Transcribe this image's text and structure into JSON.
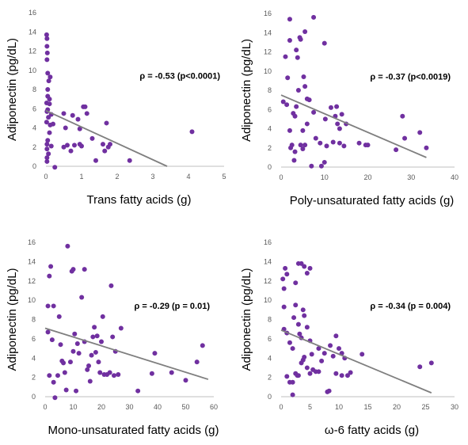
{
  "colors": {
    "point": "#7030a0",
    "trend": "#7f7f7f",
    "axis": "#bfbfbf"
  },
  "chart_data": [
    {
      "type": "scatter",
      "xlabel": "Trans fatty acids (g)",
      "ylabel": "Adiponectin (pg/dL)",
      "annotation": "ρ = -0.53 (p<0.0001)",
      "xlim": [
        0,
        5
      ],
      "ylim": [
        0,
        16
      ],
      "xticks": [
        "0",
        "1",
        "2",
        "3",
        "4",
        "5"
      ],
      "yticks": [
        "0",
        "2",
        "4",
        "6",
        "8",
        "10",
        "12",
        "14",
        "16"
      ],
      "trendline": [
        [
          0,
          5.8
        ],
        [
          3.4,
          0
        ]
      ],
      "grid": false,
      "points": [
        [
          0.02,
          13.7
        ],
        [
          0.03,
          13.3
        ],
        [
          0.03,
          12.5
        ],
        [
          0.04,
          11.8
        ],
        [
          0.03,
          11.1
        ],
        [
          0.05,
          9.7
        ],
        [
          0.12,
          9.3
        ],
        [
          0.08,
          8.9
        ],
        [
          0.05,
          8.0
        ],
        [
          0.05,
          7.3
        ],
        [
          0.1,
          7.0
        ],
        [
          0.02,
          6.6
        ],
        [
          0.05,
          5.9
        ],
        [
          0.03,
          5.7
        ],
        [
          0.1,
          6.5
        ],
        [
          0.15,
          5.4
        ],
        [
          0.07,
          5.1
        ],
        [
          0.02,
          4.6
        ],
        [
          0.2,
          4.4
        ],
        [
          0.12,
          4.3
        ],
        [
          0.1,
          3.5
        ],
        [
          0.05,
          2.7
        ],
        [
          0.03,
          2.3
        ],
        [
          0.15,
          2.1
        ],
        [
          0.03,
          1.8
        ],
        [
          0.07,
          1.3
        ],
        [
          0.03,
          0.9
        ],
        [
          0.03,
          0.5
        ],
        [
          0.25,
          -0.1
        ],
        [
          0.5,
          5.5
        ],
        [
          0.5,
          2.0
        ],
        [
          0.6,
          2.2
        ],
        [
          0.55,
          4.0
        ],
        [
          0.7,
          1.6
        ],
        [
          0.8,
          2.2
        ],
        [
          0.75,
          5.3
        ],
        [
          0.9,
          4.9
        ],
        [
          0.95,
          3.9
        ],
        [
          1.05,
          6.2
        ],
        [
          1.1,
          6.2
        ],
        [
          1.15,
          5.5
        ],
        [
          1.0,
          2.1
        ],
        [
          0.95,
          2.3
        ],
        [
          1.3,
          2.9
        ],
        [
          1.4,
          0.6
        ],
        [
          1.6,
          2.3
        ],
        [
          1.65,
          1.6
        ],
        [
          1.7,
          4.5
        ],
        [
          1.75,
          2.0
        ],
        [
          1.8,
          2.3
        ],
        [
          2.35,
          0.6
        ],
        [
          4.1,
          3.6
        ]
      ]
    },
    {
      "type": "scatter",
      "xlabel": "Poly-unsaturated fatty acids (g)",
      "ylabel": "Adiponectin (pg/dL)",
      "annotation": "ρ = -0.37 (p<0.0019)",
      "xlim": [
        0,
        40
      ],
      "ylim": [
        0,
        16
      ],
      "xticks": [
        "0",
        "10",
        "20",
        "30",
        "40"
      ],
      "yticks": [
        "0",
        "2",
        "4",
        "6",
        "8",
        "10",
        "12",
        "14",
        "16"
      ],
      "trendline": [
        [
          0,
          7.5
        ],
        [
          33.5,
          1.0
        ]
      ],
      "grid": false,
      "points": [
        [
          2,
          15.4
        ],
        [
          7.5,
          15.6
        ],
        [
          3.5,
          12.2
        ],
        [
          4.3,
          13.5
        ],
        [
          4.5,
          13.3
        ],
        [
          1,
          11.5
        ],
        [
          3.8,
          11.4
        ],
        [
          10,
          12.9
        ],
        [
          2,
          13.2
        ],
        [
          5.5,
          14.1
        ],
        [
          0.5,
          6.8
        ],
        [
          1.3,
          6.5
        ],
        [
          1.5,
          9.3
        ],
        [
          2.8,
          5.6
        ],
        [
          3.2,
          5.3
        ],
        [
          3.5,
          6.3
        ],
        [
          4,
          8.0
        ],
        [
          5.2,
          9.4
        ],
        [
          5.5,
          8.4
        ],
        [
          6,
          7.1
        ],
        [
          6.5,
          7.0
        ],
        [
          7.5,
          5.7
        ],
        [
          2,
          3.8
        ],
        [
          2.5,
          2.3
        ],
        [
          2.2,
          2.0
        ],
        [
          3.2,
          1.6
        ],
        [
          3,
          0.7
        ],
        [
          5,
          3.8
        ],
        [
          4.5,
          2.3
        ],
        [
          5,
          1.9
        ],
        [
          6,
          4.5
        ],
        [
          5.5,
          2.3
        ],
        [
          8,
          3.0
        ],
        [
          9,
          2.5
        ],
        [
          10,
          0.5
        ],
        [
          9.3,
          0.1
        ],
        [
          7,
          0.1
        ],
        [
          10.2,
          5.0
        ],
        [
          11.5,
          6.2
        ],
        [
          12.5,
          5.3
        ],
        [
          12.8,
          6.3
        ],
        [
          13,
          4.5
        ],
        [
          13.5,
          4.0
        ],
        [
          13.5,
          2.5
        ],
        [
          14,
          5.5
        ],
        [
          14.5,
          2.2
        ],
        [
          10.5,
          2.2
        ],
        [
          12,
          2.6
        ],
        [
          15,
          4.5
        ],
        [
          18,
          2.5
        ],
        [
          19.5,
          2.3
        ],
        [
          20,
          2.3
        ],
        [
          26.5,
          1.8
        ],
        [
          28,
          5.3
        ],
        [
          28.5,
          3.0
        ],
        [
          32,
          3.6
        ],
        [
          33.5,
          2.0
        ]
      ]
    },
    {
      "type": "scatter",
      "xlabel": "Mono-unsaturated fatty acids (g)",
      "ylabel": "Adiponectin (pg/dL)",
      "annotation": "ρ = -0.29 (p = 0.01)",
      "xlim": [
        0,
        60
      ],
      "ylim": [
        0,
        16
      ],
      "xticks": [
        "0",
        "10",
        "20",
        "30",
        "40",
        "50",
        "60"
      ],
      "yticks": [
        "0",
        "2",
        "4",
        "6",
        "8",
        "10",
        "12",
        "14",
        "16"
      ],
      "trendline": [
        [
          0,
          7.1
        ],
        [
          58,
          1.8
        ]
      ],
      "grid": false,
      "points": [
        [
          1,
          9.4
        ],
        [
          1.5,
          12.5
        ],
        [
          2,
          13.5
        ],
        [
          3,
          9.4
        ],
        [
          2.5,
          5.9
        ],
        [
          1,
          6.7
        ],
        [
          1.5,
          2.2
        ],
        [
          3,
          1.5
        ],
        [
          3.5,
          -0.1
        ],
        [
          4.5,
          2.2
        ],
        [
          5,
          8.3
        ],
        [
          5.5,
          5.4
        ],
        [
          6,
          3.7
        ],
        [
          6.5,
          3.5
        ],
        [
          7,
          2.5
        ],
        [
          8,
          15.6
        ],
        [
          7.5,
          0.7
        ],
        [
          9,
          3.6
        ],
        [
          9.5,
          13.0
        ],
        [
          10,
          13.2
        ],
        [
          10.5,
          6.5
        ],
        [
          10,
          4.7
        ],
        [
          11,
          0.6
        ],
        [
          11.5,
          5.5
        ],
        [
          12,
          4.5
        ],
        [
          13,
          10.3
        ],
        [
          14,
          13.2
        ],
        [
          14,
          5.7
        ],
        [
          15,
          2.8
        ],
        [
          15.5,
          3.2
        ],
        [
          16,
          1.6
        ],
        [
          16.5,
          4.3
        ],
        [
          17,
          6.2
        ],
        [
          17.5,
          7.2
        ],
        [
          18,
          4.6
        ],
        [
          18.5,
          6.3
        ],
        [
          19,
          3.6
        ],
        [
          19.5,
          2.5
        ],
        [
          20,
          5.7
        ],
        [
          20.5,
          8.3
        ],
        [
          21,
          2.3
        ],
        [
          22,
          2.3
        ],
        [
          23,
          2.5
        ],
        [
          23.5,
          11.5
        ],
        [
          24,
          6.2
        ],
        [
          24.5,
          2.2
        ],
        [
          25,
          4.7
        ],
        [
          26,
          2.3
        ],
        [
          27,
          7.1
        ],
        [
          33,
          0.6
        ],
        [
          38,
          2.4
        ],
        [
          39,
          4.5
        ],
        [
          45,
          2.5
        ],
        [
          50,
          1.7
        ],
        [
          54,
          3.6
        ],
        [
          56,
          5.3
        ]
      ]
    },
    {
      "type": "scatter",
      "xlabel": "ω-6 fatty acids (g)",
      "ylabel": "Adiponectin (pg/dL)",
      "annotation": "ρ = -0.34 (p = 0.004)",
      "xlim": [
        0,
        30
      ],
      "ylim": [
        0,
        16
      ],
      "xticks": [
        "0",
        "5",
        "10",
        "15",
        "20",
        "25",
        "30"
      ],
      "yticks": [
        "0",
        "2",
        "4",
        "6",
        "8",
        "10",
        "12",
        "14",
        "16"
      ],
      "trendline": [
        [
          0,
          6.9
        ],
        [
          26,
          0.4
        ]
      ],
      "grid": false,
      "points": [
        [
          0.3,
          12.2
        ],
        [
          0.7,
          13.3
        ],
        [
          1,
          12.7
        ],
        [
          2.5,
          11.8
        ],
        [
          3,
          13.8
        ],
        [
          3.5,
          13.8
        ],
        [
          4,
          13.5
        ],
        [
          4.5,
          12.8
        ],
        [
          5,
          13.3
        ],
        [
          0.5,
          11.2
        ],
        [
          0.5,
          9.3
        ],
        [
          2.5,
          9.5
        ],
        [
          3.8,
          9.0
        ],
        [
          0.5,
          7.0
        ],
        [
          1,
          6.6
        ],
        [
          1.5,
          5.6
        ],
        [
          2,
          5.0
        ],
        [
          2.2,
          8.2
        ],
        [
          3,
          7.5
        ],
        [
          3.2,
          6.5
        ],
        [
          3.5,
          6.1
        ],
        [
          4,
          8.4
        ],
        [
          4.5,
          7.2
        ],
        [
          5,
          5.8
        ],
        [
          5.3,
          4.4
        ],
        [
          1,
          2.1
        ],
        [
          1.5,
          1.5
        ],
        [
          2,
          1.5
        ],
        [
          2,
          0.2
        ],
        [
          2.5,
          2.4
        ],
        [
          2.8,
          2.2
        ],
        [
          3,
          2.2
        ],
        [
          3.5,
          3.5
        ],
        [
          3.8,
          3.8
        ],
        [
          4,
          4.1
        ],
        [
          4.5,
          3.0
        ],
        [
          5,
          2.4
        ],
        [
          5.5,
          2.8
        ],
        [
          6,
          2.6
        ],
        [
          6.5,
          2.6
        ],
        [
          6.5,
          5.0
        ],
        [
          7,
          3.7
        ],
        [
          7.5,
          4.5
        ],
        [
          8,
          0.5
        ],
        [
          8.3,
          0.6
        ],
        [
          8.5,
          5.3
        ],
        [
          9,
          4.2
        ],
        [
          9.5,
          6.3
        ],
        [
          10,
          5.0
        ],
        [
          10.5,
          4.5
        ],
        [
          11,
          4.0
        ],
        [
          9.5,
          2.4
        ],
        [
          10.5,
          2.2
        ],
        [
          11.5,
          2.2
        ],
        [
          12,
          2.5
        ],
        [
          14,
          4.4
        ],
        [
          24,
          3.1
        ],
        [
          26,
          3.5
        ]
      ]
    }
  ]
}
